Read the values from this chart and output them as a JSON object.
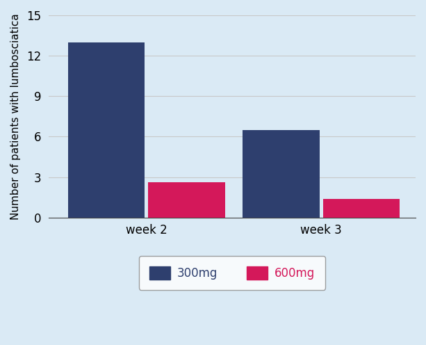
{
  "groups": [
    "week 2",
    "week 3"
  ],
  "series": {
    "300mg": [
      13,
      6.5
    ],
    "600mg": [
      2.6,
      1.4
    ]
  },
  "colors": {
    "300mg": "#2e3f6e",
    "600mg": "#d4185a"
  },
  "ylabel": "Number of patients with lumbosciatica",
  "ylim": [
    0,
    15
  ],
  "yticks": [
    0,
    3,
    6,
    9,
    12,
    15
  ],
  "bar_width": 0.22,
  "background_color": "#daeaf5",
  "plot_bg_color": "#daeaf5",
  "grid_color": "#c8c8c8",
  "legend_labels": [
    "300mg",
    "600mg"
  ],
  "legend_colors": [
    "#2e3f6e",
    "#d4185a"
  ],
  "ylabel_fontsize": 11,
  "tick_fontsize": 12,
  "legend_fontsize": 12,
  "group_centers": [
    0.28,
    0.78
  ],
  "xlim": [
    0.0,
    1.05
  ]
}
